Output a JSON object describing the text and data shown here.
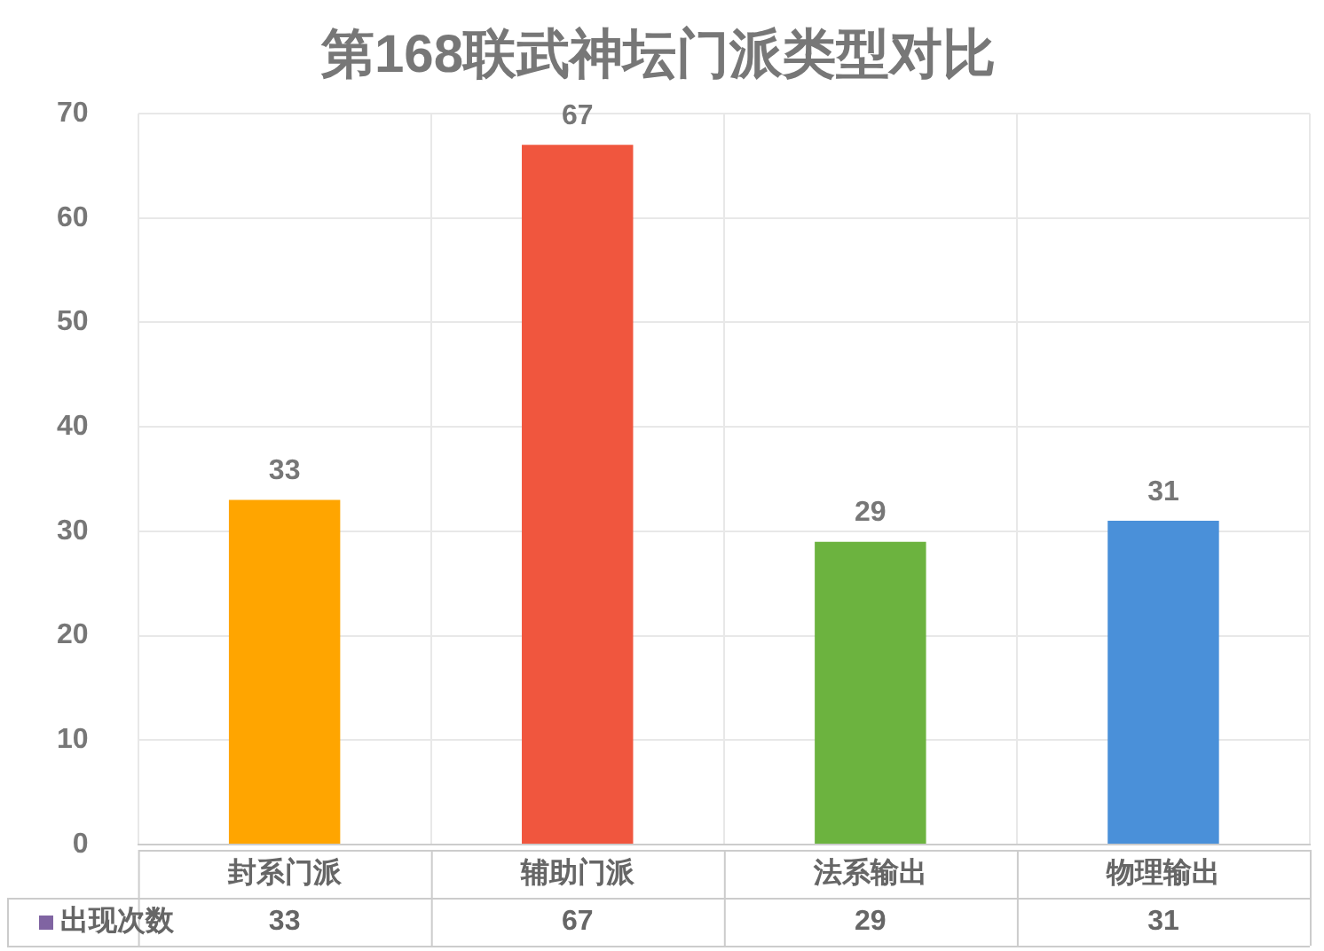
{
  "chart_data": {
    "type": "bar",
    "title": "第168联武神坛门派类型对比",
    "categories": [
      "封系门派",
      "辅助门派",
      "法系输出",
      "物理输出"
    ],
    "series": [
      {
        "name": "出现次数",
        "color": "#8064a2",
        "colors": [
          "#ffa500",
          "#f0563e",
          "#6cb33f",
          "#4a90d9"
        ],
        "values": [
          33,
          67,
          29,
          31
        ],
        "value_labels": [
          "33",
          "67",
          "29",
          "31"
        ]
      }
    ],
    "ylim": [
      0,
      70
    ],
    "yticks": [
      0,
      10,
      20,
      30,
      40,
      50,
      60,
      70
    ],
    "grid": true
  }
}
